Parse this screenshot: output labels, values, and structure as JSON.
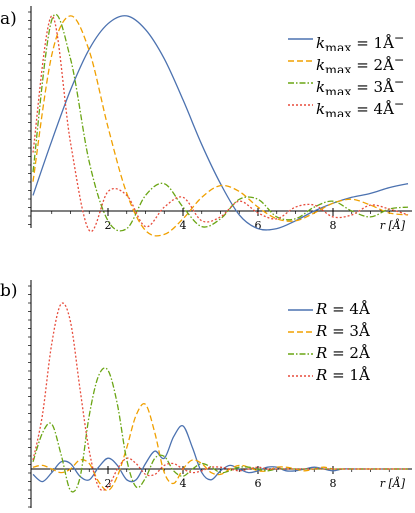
{
  "chart_data": [
    {
      "type": "line",
      "panel_label": "a)",
      "xlabel": "r [Å]",
      "xlim": [
        0,
        10
      ],
      "ylim": [
        -0.22,
        1.02
      ],
      "xticks": [
        2,
        4,
        6,
        8
      ],
      "grid": false,
      "legend_position": "top-right",
      "colors": [
        "#4c72b0",
        "#f0a000",
        "#6aa514",
        "#e74c3c"
      ],
      "x": [
        0,
        0.5,
        1,
        1.5,
        2,
        2.5,
        3,
        3.5,
        4,
        4.5,
        5,
        5.5,
        6,
        6.5,
        7,
        7.5,
        8,
        8.5,
        9,
        9.5,
        10
      ],
      "series": [
        {
          "name": "kmax = 1Å⁻",
          "label_html": "k<sub>max</sub> = 1Å<sup>−</sup>",
          "values": [
            0.08,
            0.36,
            0.62,
            0.83,
            0.96,
            1.0,
            0.93,
            0.78,
            0.57,
            0.34,
            0.14,
            -0.02,
            -0.09,
            -0.09,
            -0.05,
            0.0,
            0.04,
            0.07,
            0.09,
            0.12,
            0.14
          ]
        },
        {
          "name": "kmax = 2Å⁻",
          "label_html": "k<sub>max</sub> = 2Å<sup>−</sup>",
          "values": [
            0.15,
            0.8,
            1.0,
            0.82,
            0.43,
            0.09,
            -0.1,
            -0.12,
            -0.04,
            0.07,
            0.13,
            0.1,
            0.02,
            -0.04,
            -0.05,
            -0.01,
            0.04,
            0.06,
            0.03,
            -0.01,
            -0.02
          ]
        },
        {
          "name": "kmax = 3Å⁻",
          "label_html": "k<sub>max</sub> = 3Å<sup>−</sup>",
          "values": [
            0.2,
            0.98,
            0.78,
            0.25,
            -0.05,
            -0.09,
            0.08,
            0.14,
            0.02,
            -0.08,
            -0.04,
            0.06,
            0.06,
            -0.03,
            -0.04,
            0.02,
            0.05,
            0.0,
            -0.03,
            0.01,
            0.02
          ]
        },
        {
          "name": "kmax = 4Å⁻",
          "label_html": "k<sub>max</sub> = 4Å<sup>−</sup>",
          "values": [
            0.3,
            1.0,
            0.35,
            -0.1,
            0.1,
            0.08,
            -0.08,
            0.02,
            0.07,
            -0.05,
            -0.03,
            0.05,
            -0.01,
            -0.04,
            0.02,
            0.03,
            -0.03,
            -0.02,
            0.03,
            0.01,
            -0.02
          ]
        }
      ]
    },
    {
      "type": "line",
      "panel_label": "b)",
      "xlabel": "r [Å]",
      "xlim": [
        0,
        10
      ],
      "ylim": [
        -0.22,
        1.02
      ],
      "xticks": [
        2,
        4,
        6,
        8
      ],
      "grid": false,
      "legend_position": "top-right",
      "colors": [
        "#4c72b0",
        "#f0a000",
        "#6aa514",
        "#e74c3c"
      ],
      "x": [
        0,
        0.25,
        0.5,
        0.75,
        1,
        1.25,
        1.5,
        1.75,
        2,
        2.25,
        2.5,
        2.75,
        3,
        3.25,
        3.5,
        3.75,
        4,
        4.25,
        4.5,
        4.75,
        5,
        5.25,
        5.5,
        5.75,
        6,
        6.25,
        6.5,
        6.75,
        7,
        7.25,
        7.5,
        7.75,
        8,
        8.25,
        8.5,
        8.75,
        9,
        9.25,
        9.5,
        9.75,
        10
      ],
      "series": [
        {
          "name": "R = 4Å",
          "label_html": "R = 4Å",
          "values": [
            -0.03,
            -0.07,
            -0.02,
            0.04,
            0.03,
            -0.04,
            -0.06,
            0.01,
            0.06,
            0.02,
            -0.06,
            -0.06,
            0.03,
            0.1,
            0.06,
            0.18,
            0.24,
            0.12,
            -0.02,
            -0.06,
            -0.01,
            0.02,
            0.0,
            -0.02,
            -0.01,
            0.01,
            0.01,
            -0.01,
            -0.01,
            0.0,
            0.01,
            0.0,
            -0.01,
            0.0,
            0.0,
            0.0,
            0.0,
            0.0,
            0.0,
            0.0,
            0.0
          ]
        },
        {
          "name": "R = 3Å",
          "label_html": "R = 3Å",
          "values": [
            0.01,
            0.02,
            0.0,
            -0.02,
            0.0,
            0.05,
            0.03,
            -0.07,
            -0.12,
            -0.04,
            0.12,
            0.3,
            0.36,
            0.2,
            -0.02,
            -0.08,
            0.0,
            0.05,
            0.03,
            -0.02,
            -0.03,
            0.0,
            0.02,
            0.01,
            -0.01,
            -0.01,
            0.01,
            0.01,
            0.0,
            -0.01,
            0.0,
            0.01,
            0.0,
            0.0,
            0.0,
            0.0,
            0.0,
            0.0,
            0.0,
            0.0,
            0.0
          ]
        },
        {
          "name": "R = 2Å",
          "label_html": "R = 2Å",
          "values": [
            0.04,
            0.2,
            0.25,
            0.08,
            -0.12,
            -0.05,
            0.3,
            0.52,
            0.55,
            0.36,
            0.05,
            -0.1,
            -0.05,
            0.06,
            0.07,
            -0.01,
            -0.04,
            0.0,
            0.03,
            0.01,
            -0.02,
            -0.01,
            0.01,
            0.01,
            0.0,
            -0.01,
            0.0,
            0.0,
            0.0,
            0.0,
            0.0,
            0.0,
            0.0,
            0.0,
            0.0,
            0.0,
            0.0,
            0.0,
            0.0,
            0.0,
            0.0
          ]
        },
        {
          "name": "R = 1Å",
          "label_html": "R = 1Å",
          "values": [
            0.05,
            0.3,
            0.7,
            0.92,
            0.82,
            0.45,
            0.1,
            -0.1,
            -0.1,
            0.0,
            0.06,
            0.03,
            -0.03,
            -0.03,
            0.02,
            0.03,
            0.0,
            -0.02,
            -0.01,
            0.01,
            0.01,
            0.0,
            -0.01,
            0.0,
            0.01,
            0.0,
            0.0,
            0.0,
            0.0,
            0.0,
            0.0,
            0.0,
            0.0,
            0.0,
            0.0,
            0.0,
            0.0,
            0.0,
            0.0,
            0.0,
            0.0
          ]
        }
      ]
    }
  ]
}
